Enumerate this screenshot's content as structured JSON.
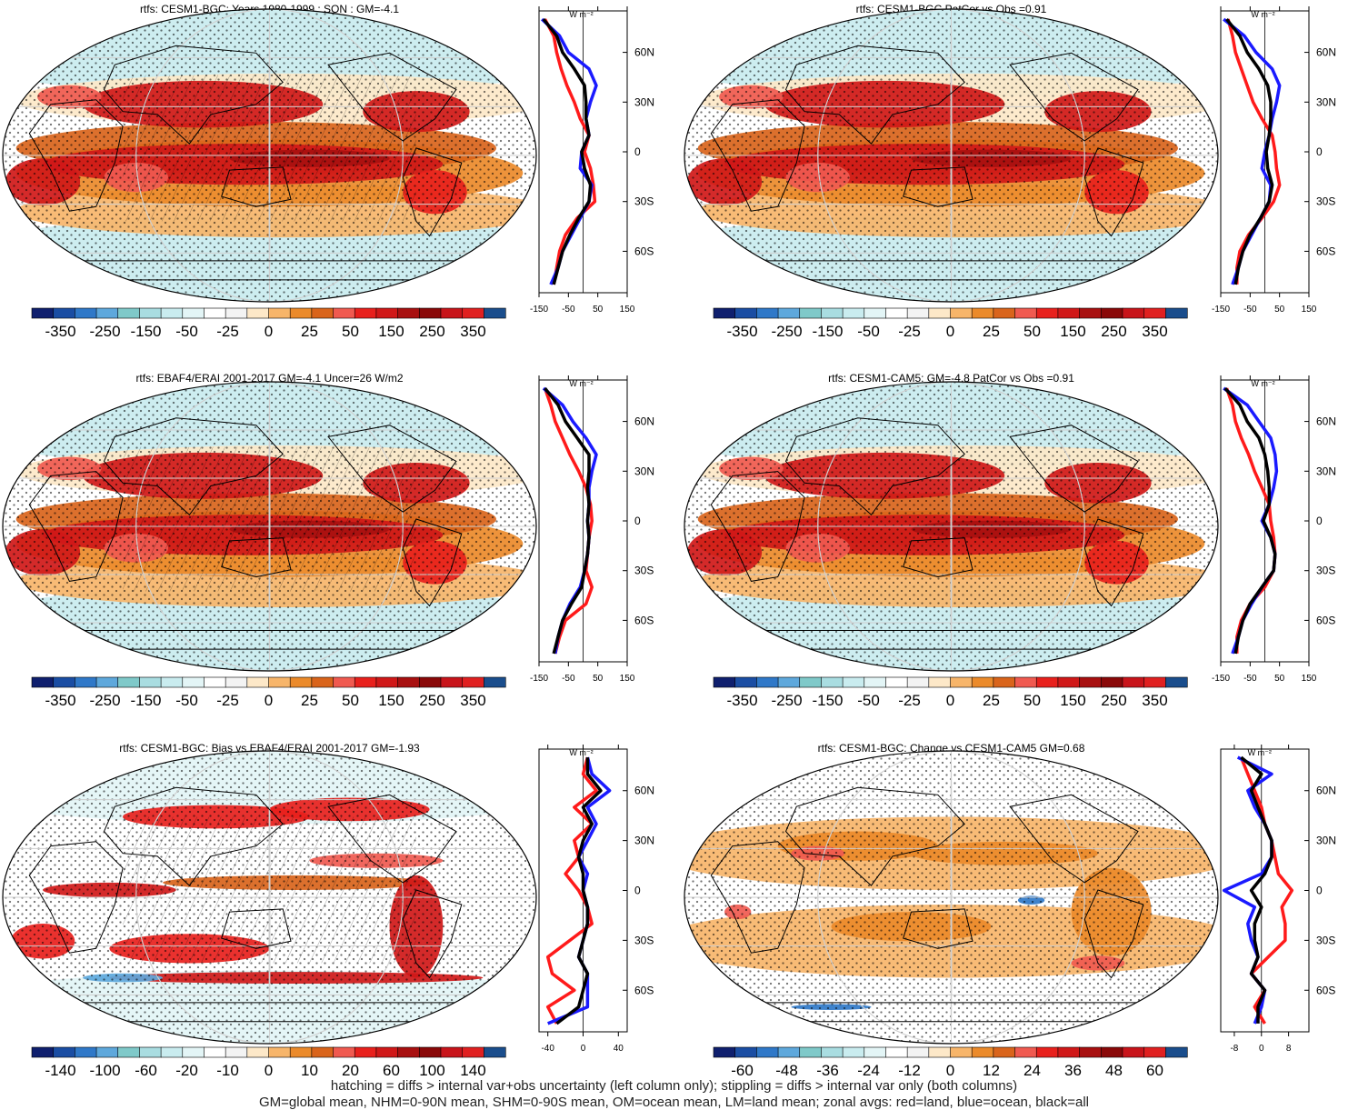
{
  "palettes": {
    "main": [
      "#0f1f6e",
      "#1a4da3",
      "#2f78c8",
      "#5ea8dc",
      "#7fc9c9",
      "#a9dde1",
      "#c9ecef",
      "#e3f5f6",
      "#ffffff",
      "#f3f3f3",
      "#fde8c8",
      "#f7b56a",
      "#eb8a2a",
      "#d9641b",
      "#f05a50",
      "#e8201c",
      "#d01818",
      "#a81010",
      "#8a0808",
      "#c8141a",
      "#e02020",
      "#1a4d8c"
    ],
    "bias": [
      "#0f1f6e",
      "#1a4da3",
      "#2f78c8",
      "#5ea8dc",
      "#7fc9c9",
      "#a9dde1",
      "#c9ecef",
      "#e3f5f6",
      "#ffffff",
      "#f3f3f3",
      "#fde8c8",
      "#f7b56a",
      "#eb8a2a",
      "#d9641b",
      "#f05a50",
      "#e8201c",
      "#d01818",
      "#a81010",
      "#8a0808",
      "#c8141a",
      "#e02020",
      "#1a4d8c"
    ],
    "change": [
      "#0f1f6e",
      "#1a4da3",
      "#2f78c8",
      "#5ea8dc",
      "#7fc9c9",
      "#a9dde1",
      "#c9ecef",
      "#e3f5f6",
      "#ffffff",
      "#f3f3f3",
      "#fde8c8",
      "#f7b56a",
      "#eb8a2a",
      "#d9641b",
      "#f05a50",
      "#e8201c",
      "#d01818",
      "#a81010",
      "#8a0808",
      "#c8141a",
      "#e02020",
      "#1a4d8c"
    ]
  },
  "line_colors": {
    "land": "#ff1a1a",
    "ocean": "#1a1aff",
    "all": "#000000"
  },
  "footer": {
    "line1": "hatching = diffs > internal var+obs uncertainty (left column only); stippling = diffs > internal var only (both columns)",
    "line2": "GM=global mean, NHM=0-90N mean, SHM=0-90S mean, OM=ocean mean, LM=land mean; zonal avgs: red=land, blue=ocean, black=all"
  },
  "chart_data": [
    {
      "type": "heatmap",
      "title": "rtfs: CESM1-BGC: Years 1980-1999 : SON : GM=-4.1",
      "palette": "main",
      "colorbar_labels": [
        "-350",
        "-250",
        "-150",
        "-50",
        "-25",
        "0",
        "25",
        "50",
        "150",
        "250",
        "350"
      ],
      "hatching": true,
      "profile": {
        "units_label": "W m⁻²",
        "xticks": [
          "-150",
          "-50",
          "50",
          "150"
        ],
        "xtick_values": [
          -150,
          -50,
          50,
          150
        ],
        "xlim": [
          -150,
          150
        ],
        "lat_labels": [
          "60N",
          "30N",
          "0",
          "30S",
          "60S"
        ],
        "lat_values": [
          60,
          30,
          0,
          -30,
          -60
        ],
        "lat": [
          80,
          70,
          60,
          50,
          40,
          30,
          20,
          10,
          0,
          -10,
          -20,
          -30,
          -40,
          -50,
          -60,
          -70,
          -80
        ],
        "series": [
          {
            "color_key": "land",
            "values": [
              -130,
              -100,
              -90,
              -75,
              -55,
              -30,
              -10,
              20,
              5,
              25,
              35,
              40,
              -20,
              -60,
              -80,
              -90,
              -100
            ]
          },
          {
            "color_key": "ocean",
            "values": [
              -140,
              -80,
              -50,
              20,
              45,
              25,
              10,
              20,
              -5,
              -10,
              30,
              20,
              -10,
              -40,
              -70,
              -85,
              -110
            ]
          },
          {
            "color_key": "all",
            "values": [
              -135,
              -90,
              -70,
              -30,
              5,
              10,
              10,
              20,
              -5,
              5,
              25,
              20,
              -15,
              -45,
              -70,
              -85,
              -100
            ]
          }
        ]
      }
    },
    {
      "type": "heatmap",
      "title": "rtfs: CESM1-BGC PatCor vs Obs =0.91",
      "palette": "main",
      "colorbar_labels": [
        "-350",
        "-250",
        "-150",
        "-50",
        "-25",
        "0",
        "25",
        "50",
        "150",
        "250",
        "350"
      ],
      "hatching": false,
      "profile": {
        "units_label": "W m⁻²",
        "xticks": [
          "-150",
          "-50",
          "50",
          "150"
        ],
        "xtick_values": [
          -150,
          -50,
          50,
          150
        ],
        "xlim": [
          -150,
          150
        ],
        "lat_labels": [
          "60N",
          "30N",
          "0",
          "30S",
          "60S"
        ],
        "lat_values": [
          60,
          30,
          0,
          -30,
          -60
        ],
        "lat": [
          80,
          70,
          60,
          50,
          40,
          30,
          20,
          10,
          0,
          -10,
          -20,
          -30,
          -40,
          -50,
          -60,
          -70,
          -80
        ],
        "series": [
          {
            "color_key": "land",
            "values": [
              -125,
              -110,
              -100,
              -80,
              -60,
              -40,
              -10,
              25,
              35,
              40,
              50,
              30,
              -10,
              -55,
              -85,
              -95,
              -95
            ]
          },
          {
            "color_key": "ocean",
            "values": [
              -140,
              -70,
              -30,
              25,
              50,
              40,
              25,
              15,
              0,
              -10,
              20,
              15,
              -15,
              -45,
              -75,
              -90,
              -110
            ]
          },
          {
            "color_key": "all",
            "values": [
              -130,
              -85,
              -60,
              -20,
              10,
              20,
              20,
              15,
              5,
              10,
              25,
              15,
              -15,
              -50,
              -75,
              -90,
              -100
            ]
          }
        ]
      }
    },
    {
      "type": "heatmap",
      "title": "rtfs: EBAF4/ERAI 2001-2017 GM=-4.1 Uncer=26 W/m2",
      "palette": "main",
      "colorbar_labels": [
        "-350",
        "-250",
        "-150",
        "-50",
        "-25",
        "0",
        "25",
        "50",
        "150",
        "250",
        "350"
      ],
      "hatching": true,
      "profile": {
        "units_label": "W m⁻²",
        "xticks": [
          "-150",
          "-50",
          "50",
          "150"
        ],
        "xtick_values": [
          -150,
          -50,
          50,
          150
        ],
        "xlim": [
          -150,
          150
        ],
        "lat_labels": [
          "60N",
          "30N",
          "0",
          "30S",
          "60S"
        ],
        "lat_values": [
          60,
          30,
          0,
          -30,
          -60
        ],
        "lat": [
          80,
          70,
          60,
          50,
          40,
          30,
          20,
          10,
          0,
          -10,
          -20,
          -30,
          -40,
          -50,
          -60,
          -70,
          -80
        ],
        "series": [
          {
            "color_key": "land",
            "values": [
              -130,
              -110,
              -95,
              -70,
              -45,
              -15,
              10,
              25,
              30,
              20,
              15,
              10,
              30,
              10,
              -60,
              -80,
              -95
            ]
          },
          {
            "color_key": "ocean",
            "values": [
              -135,
              -70,
              -35,
              10,
              45,
              30,
              20,
              20,
              15,
              20,
              15,
              5,
              -10,
              -45,
              -70,
              -85,
              -95
            ]
          },
          {
            "color_key": "all",
            "values": [
              -130,
              -85,
              -60,
              -20,
              20,
              20,
              15,
              20,
              15,
              20,
              15,
              5,
              -5,
              -40,
              -70,
              -85,
              -100
            ]
          }
        ]
      }
    },
    {
      "type": "heatmap",
      "title": "rtfs: CESM1-CAM5: GM=-4.8 PatCor vs Obs =0.91",
      "palette": "main",
      "colorbar_labels": [
        "-350",
        "-250",
        "-150",
        "-50",
        "-25",
        "0",
        "25",
        "50",
        "150",
        "250",
        "350"
      ],
      "hatching": false,
      "profile": {
        "units_label": "W m⁻²",
        "xticks": [
          "-150",
          "-50",
          "50",
          "150"
        ],
        "xtick_values": [
          -150,
          -50,
          50,
          150
        ],
        "xlim": [
          -150,
          150
        ],
        "lat_labels": [
          "60N",
          "30N",
          "0",
          "30S",
          "60S"
        ],
        "lat_values": [
          60,
          30,
          0,
          -30,
          -60
        ],
        "lat": [
          80,
          70,
          60,
          50,
          40,
          30,
          20,
          10,
          0,
          -10,
          -20,
          -30,
          -40,
          -50,
          -60,
          -70,
          -80
        ],
        "series": [
          {
            "color_key": "land",
            "values": [
              -130,
              -110,
              -100,
              -80,
              -55,
              -35,
              -10,
              15,
              20,
              30,
              35,
              30,
              0,
              -50,
              -80,
              -95,
              -95
            ]
          },
          {
            "color_key": "ocean",
            "values": [
              -140,
              -60,
              -20,
              20,
              35,
              40,
              30,
              15,
              -10,
              20,
              35,
              30,
              -10,
              -45,
              -75,
              -90,
              -110
            ]
          },
          {
            "color_key": "all",
            "values": [
              -135,
              -85,
              -60,
              -20,
              0,
              10,
              15,
              15,
              -5,
              20,
              35,
              30,
              -10,
              -50,
              -75,
              -90,
              -100
            ]
          }
        ]
      }
    },
    {
      "type": "heatmap",
      "title": "rtfs: CESM1-BGC: Bias vs EBAF4/ERAI 2001-2017  GM=-1.93",
      "palette": "bias",
      "colorbar_labels": [
        "-140",
        "-100",
        "-60",
        "-20",
        "-10",
        "0",
        "10",
        "20",
        "60",
        "100",
        "140"
      ],
      "hatching": true,
      "profile": {
        "units_label": "W m⁻²",
        "xticks": [
          "-40",
          "0",
          "40"
        ],
        "xtick_values": [
          -40,
          0,
          40
        ],
        "xlim": [
          -50,
          50
        ],
        "lat_labels": [
          "60N",
          "30N",
          "0",
          "30S",
          "60S"
        ],
        "lat_values": [
          60,
          30,
          0,
          -30,
          -60
        ],
        "lat": [
          80,
          70,
          60,
          50,
          40,
          30,
          20,
          10,
          0,
          -10,
          -20,
          -30,
          -40,
          -50,
          -60,
          -70,
          -80
        ],
        "series": [
          {
            "color_key": "land",
            "values": [
              5,
              0,
              15,
              -10,
              10,
              -10,
              -5,
              -20,
              -5,
              5,
              10,
              -15,
              -40,
              -35,
              -10,
              -40,
              -30
            ]
          },
          {
            "color_key": "ocean",
            "values": [
              5,
              10,
              30,
              5,
              15,
              5,
              -5,
              5,
              0,
              5,
              5,
              0,
              -5,
              5,
              5,
              5,
              -40
            ]
          },
          {
            "color_key": "all",
            "values": [
              5,
              5,
              20,
              0,
              10,
              0,
              -5,
              0,
              0,
              5,
              5,
              0,
              -5,
              5,
              0,
              -5,
              -30
            ]
          }
        ]
      }
    },
    {
      "type": "heatmap",
      "title": "rtfs: CESM1-BGC: Change vs CESM1-CAM5 GM=0.68",
      "palette": "change",
      "colorbar_labels": [
        "-60",
        "-48",
        "-36",
        "-24",
        "-12",
        "0",
        "12",
        "24",
        "36",
        "48",
        "60"
      ],
      "hatching": false,
      "profile": {
        "units_label": "W m⁻²",
        "xticks": [
          "-8",
          "0",
          "8"
        ],
        "xtick_values": [
          -8,
          0,
          8
        ],
        "xlim": [
          -12,
          14
        ],
        "lat_labels": [
          "60N",
          "30N",
          "0",
          "30S",
          "60S"
        ],
        "lat_values": [
          60,
          30,
          0,
          -30,
          -60
        ],
        "lat": [
          80,
          70,
          60,
          50,
          40,
          30,
          20,
          10,
          0,
          -10,
          -20,
          -30,
          -40,
          -50,
          -60,
          -70,
          -80
        ],
        "series": [
          {
            "color_key": "land",
            "values": [
              -6,
              -4,
              -2,
              0,
              1,
              3,
              4,
              5,
              9,
              6,
              7,
              7,
              2,
              -3,
              1,
              -2,
              1
            ]
          },
          {
            "color_key": "ocean",
            "values": [
              -7,
              3,
              -4,
              -2,
              1,
              3,
              3,
              0,
              -11,
              -2,
              -4,
              -3,
              -1,
              -3,
              1,
              0,
              -2
            ]
          },
          {
            "color_key": "all",
            "values": [
              -6,
              0,
              -3,
              -1,
              1,
              3,
              3,
              1,
              -3,
              0,
              -2,
              -2,
              -1,
              -3,
              1,
              -1,
              -1
            ]
          }
        ]
      }
    }
  ]
}
